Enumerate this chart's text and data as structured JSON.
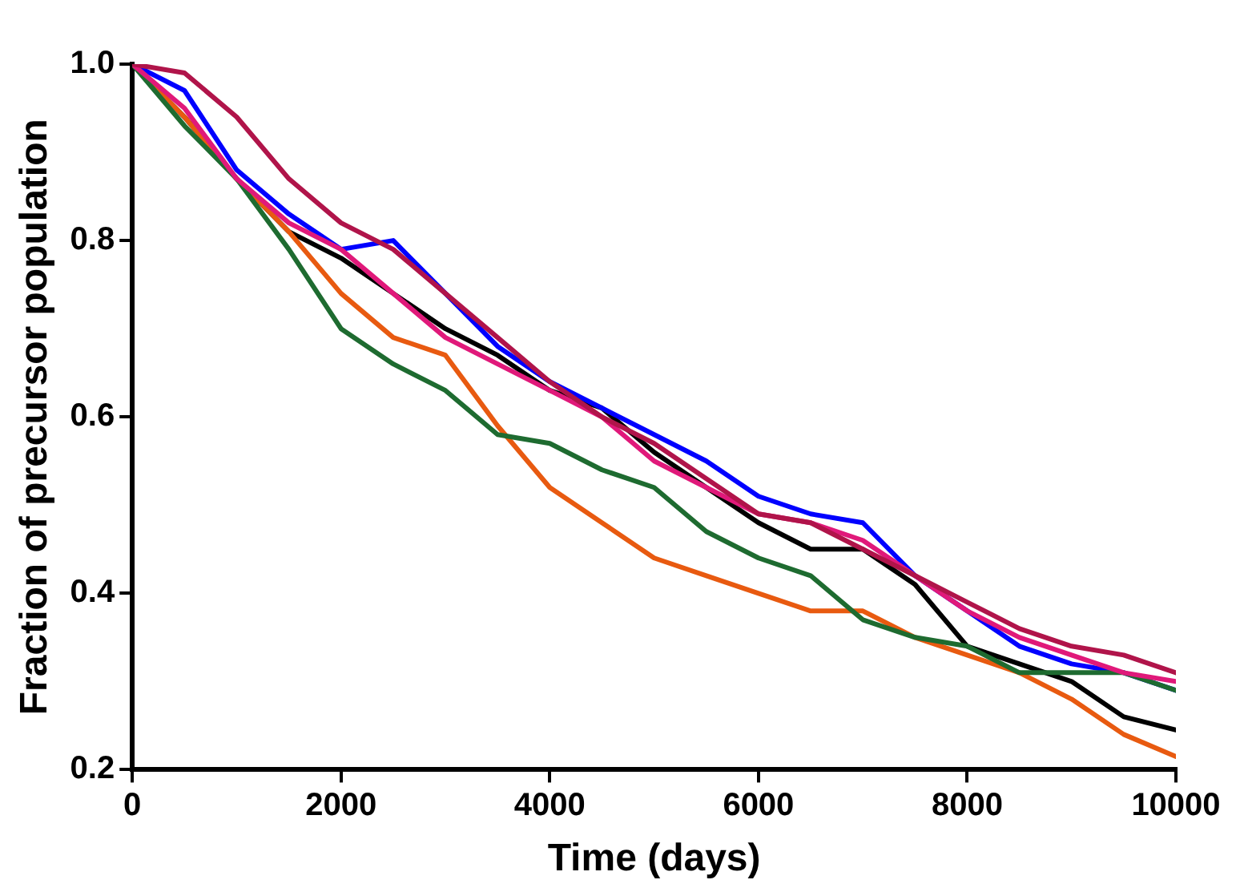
{
  "chart_data": {
    "type": "line",
    "xlabel": "Time (days)",
    "ylabel": "Fraction of precursor population",
    "x": [
      0,
      500,
      1000,
      1500,
      2000,
      2500,
      3000,
      3500,
      4000,
      4500,
      5000,
      5500,
      6000,
      6500,
      7000,
      7500,
      8000,
      8500,
      9000,
      9500,
      10000
    ],
    "xlim": [
      0,
      10000
    ],
    "xticks": [
      0,
      2000,
      4000,
      6000,
      8000,
      10000
    ],
    "ylim": [
      0.2,
      1.0
    ],
    "yticks": [
      {
        "value": 0.2,
        "label": "0.2"
      },
      {
        "value": 0.4,
        "label": "0.4"
      },
      {
        "value": 0.6,
        "label": "0.6"
      },
      {
        "value": 0.8,
        "label": "0.8"
      },
      {
        "value": 1.0,
        "label": "1.0"
      }
    ],
    "grid": false,
    "legend": false,
    "marker": "none",
    "line_style": "solid",
    "series": [
      {
        "color": "#b0144a",
        "values": [
          1.0,
          0.99,
          0.94,
          0.87,
          0.82,
          0.79,
          0.74,
          0.69,
          0.64,
          0.6,
          0.57,
          0.53,
          0.49,
          0.48,
          0.45,
          0.42,
          0.39,
          0.36,
          0.34,
          0.33,
          0.31
        ]
      },
      {
        "color": "#e0197a",
        "values": [
          1.0,
          0.95,
          0.87,
          0.82,
          0.79,
          0.74,
          0.69,
          0.66,
          0.63,
          0.6,
          0.55,
          0.52,
          0.49,
          0.48,
          0.46,
          0.42,
          0.38,
          0.35,
          0.33,
          0.31,
          0.3
        ]
      },
      {
        "color": "#1e6b30",
        "values": [
          1.0,
          0.93,
          0.87,
          0.79,
          0.7,
          0.66,
          0.63,
          0.58,
          0.57,
          0.54,
          0.52,
          0.47,
          0.44,
          0.42,
          0.37,
          0.35,
          0.34,
          0.31,
          0.31,
          0.31,
          0.29
        ]
      },
      {
        "color": "#e85a10",
        "values": [
          1.0,
          0.94,
          0.87,
          0.81,
          0.74,
          0.69,
          0.67,
          0.59,
          0.52,
          0.48,
          0.44,
          0.42,
          0.4,
          0.38,
          0.38,
          0.35,
          0.33,
          0.31,
          0.28,
          0.24,
          0.215
        ]
      },
      {
        "color": "#0000ff",
        "values": [
          1.0,
          0.97,
          0.88,
          0.83,
          0.79,
          0.8,
          0.74,
          0.68,
          0.64,
          0.61,
          0.58,
          0.55,
          0.51,
          0.49,
          0.48,
          0.42,
          0.38,
          0.34,
          0.32,
          0.31,
          0.29
        ]
      },
      {
        "color": "#000000",
        "values": [
          1.0,
          0.94,
          0.87,
          0.81,
          0.78,
          0.74,
          0.7,
          0.67,
          0.63,
          0.61,
          0.56,
          0.52,
          0.48,
          0.45,
          0.45,
          0.41,
          0.34,
          0.32,
          0.3,
          0.26,
          0.245
        ]
      }
    ]
  }
}
